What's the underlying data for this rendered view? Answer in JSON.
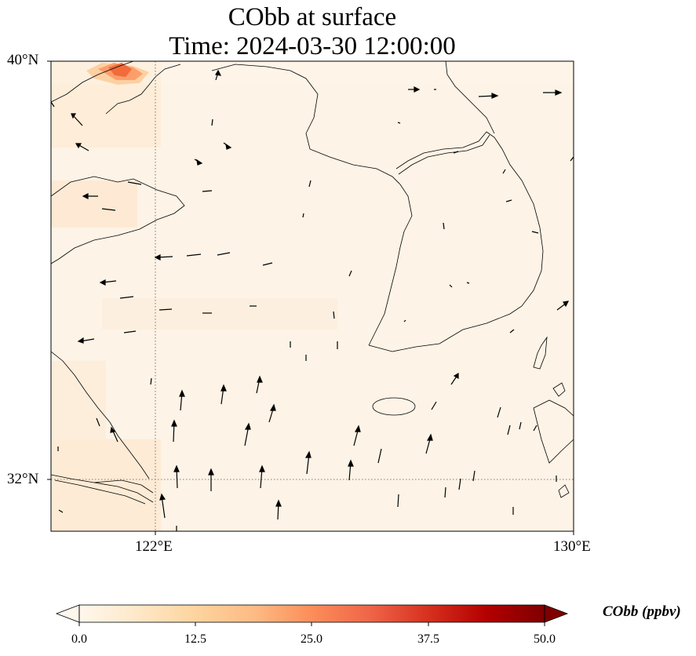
{
  "title": {
    "line1": "CObb at surface",
    "line2": "Time: 2024-03-30 12:00:00"
  },
  "map": {
    "extent": {
      "lon_min": 120,
      "lon_max": 130,
      "lat_min": 31,
      "lat_max": 40
    },
    "lat_ticks": [
      {
        "value": 40,
        "label": "40°N"
      },
      {
        "value": 32,
        "label": "32°N"
      }
    ],
    "lon_ticks": [
      {
        "value": 122,
        "label": "122°E"
      },
      {
        "value": 130,
        "label": "130°E"
      }
    ],
    "gridlines": "dotted",
    "field_colors": {
      "background": "#fdf3e6",
      "hotspot": "#f26b3a"
    }
  },
  "colorbar": {
    "label": "CObb (ppbv)",
    "min": 0.0,
    "max": 50.0,
    "extend": "both",
    "colormap": "OrRd",
    "ticks": [
      "0.0",
      "12.5",
      "25.0",
      "37.5",
      "50.0"
    ]
  }
}
